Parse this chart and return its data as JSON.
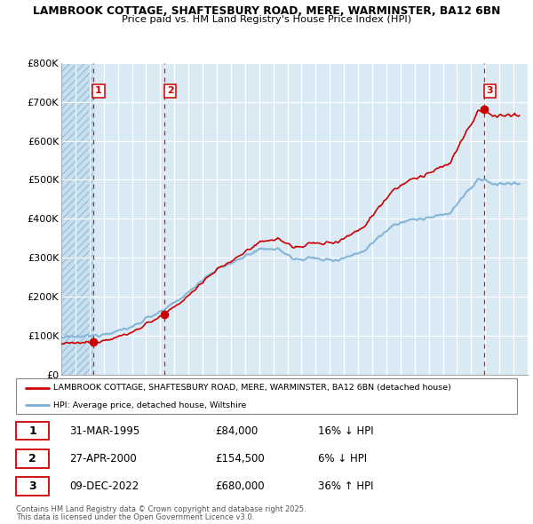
{
  "title1": "LAMBROOK COTTAGE, SHAFTESBURY ROAD, MERE, WARMINSTER, BA12 6BN",
  "title2": "Price paid vs. HM Land Registry's House Price Index (HPI)",
  "ylim": [
    0,
    800000
  ],
  "yticks": [
    0,
    100000,
    200000,
    300000,
    400000,
    500000,
    600000,
    700000,
    800000
  ],
  "ytick_labels": [
    "£0",
    "£100K",
    "£200K",
    "£300K",
    "£400K",
    "£500K",
    "£600K",
    "£700K",
    "£800K"
  ],
  "hpi_color": "#7ab0d4",
  "price_color": "#cc0000",
  "dashed_color": "#cc0000",
  "sale_dates": [
    1995.25,
    2000.32,
    2022.93
  ],
  "sale_prices": [
    84000,
    154500,
    680000
  ],
  "sale_labels": [
    "1",
    "2",
    "3"
  ],
  "legend_label1": "LAMBROOK COTTAGE, SHAFTESBURY ROAD, MERE, WARMINSTER, BA12 6BN (detached house)",
  "legend_label2": "HPI: Average price, detached house, Wiltshire",
  "table_rows": [
    [
      "1",
      "31-MAR-1995",
      "£84,000",
      "16% ↓ HPI"
    ],
    [
      "2",
      "27-APR-2000",
      "£154,500",
      "6% ↓ HPI"
    ],
    [
      "3",
      "09-DEC-2022",
      "£680,000",
      "36% ↑ HPI"
    ]
  ],
  "footnote1": "Contains HM Land Registry data © Crown copyright and database right 2025.",
  "footnote2": "This data is licensed under the Open Government Licence v3.0.",
  "xmin": 1993,
  "xmax": 2026
}
